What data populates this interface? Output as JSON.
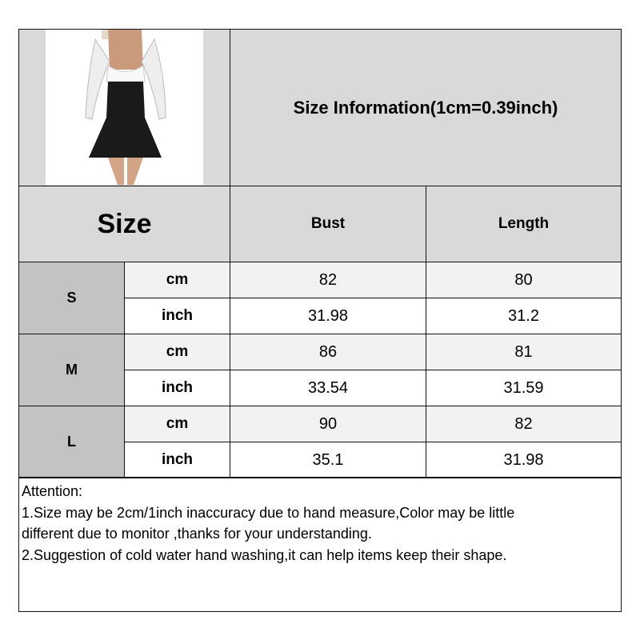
{
  "title": "Size Information(1cm=0.39inch)",
  "header": {
    "size_label": "Size",
    "columns": [
      "Bust",
      "Length"
    ]
  },
  "product_image": {
    "description_icon": "dress-photo"
  },
  "rows": [
    {
      "size": "S",
      "cm": {
        "unit": "cm",
        "bust": "82",
        "length": "80"
      },
      "inch": {
        "unit": "inch",
        "bust": "31.98",
        "length": "31.2"
      }
    },
    {
      "size": "M",
      "cm": {
        "unit": "cm",
        "bust": "86",
        "length": "81"
      },
      "inch": {
        "unit": "inch",
        "bust": "33.54",
        "length": "31.59"
      }
    },
    {
      "size": "L",
      "cm": {
        "unit": "cm",
        "bust": "90",
        "length": "82"
      },
      "inch": {
        "unit": "inch",
        "bust": "35.1",
        "length": "31.98"
      }
    }
  ],
  "notes": [
    "Attention:",
    "1.Size may be 2cm/1inch inaccuracy due to hand measure,Color may be little",
    "different due to monitor ,thanks for your understanding.",
    "2.Suggestion of cold water hand washing,it can help items keep their shape."
  ],
  "colors": {
    "header_bg": "#d9d9d9",
    "size_bg": "#c3c3c3",
    "cm_row_bg": "#f2f2f2",
    "border": "#111111"
  }
}
